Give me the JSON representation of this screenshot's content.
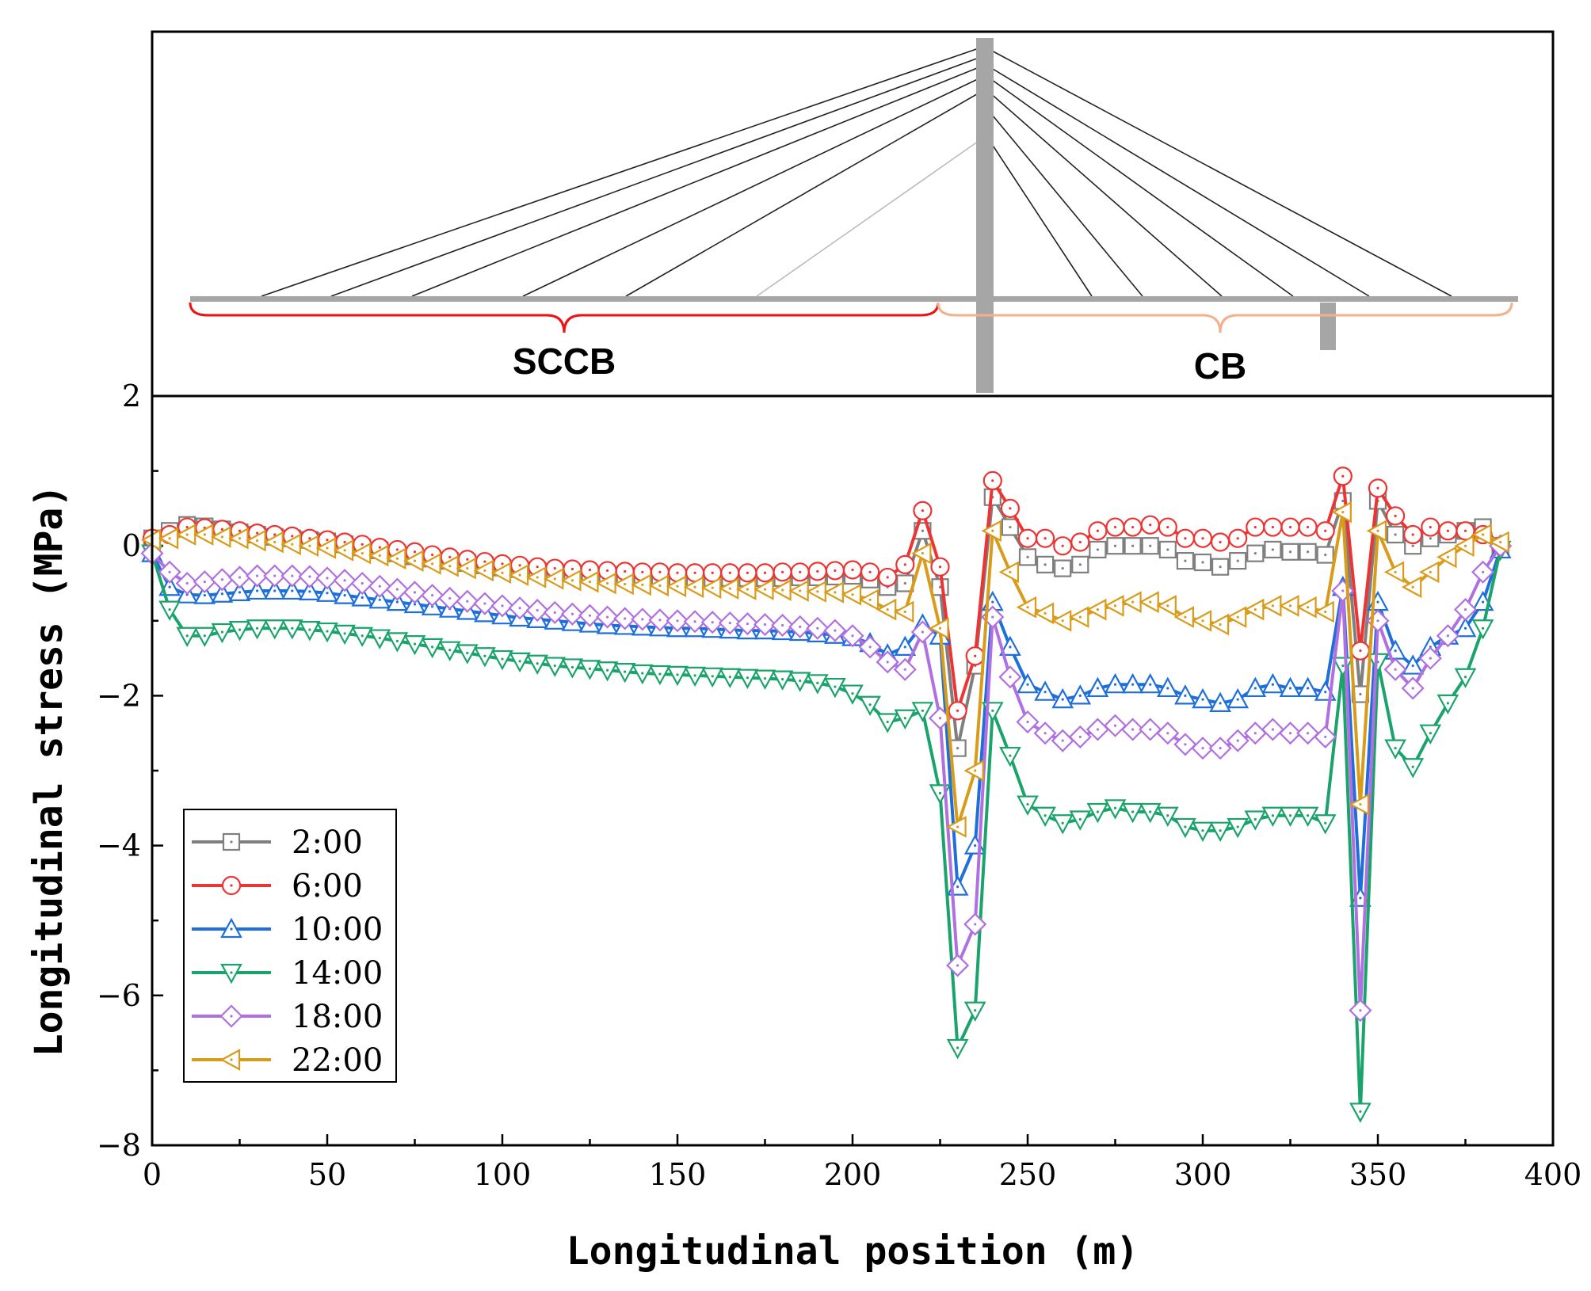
{
  "diagram": {
    "label_left": "SCCB",
    "label_right": "CB",
    "colors": {
      "deck": "#a6a6a6",
      "tower": "#a6a6a6",
      "cable": "#222222",
      "brace_left": "#ee1111",
      "brace_right": "#f4b08a"
    }
  },
  "chart_data": {
    "type": "line",
    "xlabel": "Longitudinal position (m)",
    "ylabel": "Longitudinal stress (MPa)",
    "xlim": [
      0,
      400
    ],
    "ylim": [
      -8,
      2
    ],
    "xticks": [
      0,
      50,
      100,
      150,
      200,
      250,
      300,
      350,
      400
    ],
    "yticks": [
      -8,
      -6,
      -4,
      -2,
      0,
      2
    ],
    "x": [
      0,
      5,
      10,
      15,
      20,
      25,
      30,
      35,
      40,
      45,
      50,
      55,
      60,
      65,
      70,
      75,
      80,
      85,
      90,
      95,
      100,
      105,
      110,
      115,
      120,
      125,
      130,
      135,
      140,
      145,
      150,
      155,
      160,
      165,
      170,
      175,
      180,
      185,
      190,
      195,
      200,
      205,
      210,
      215,
      220,
      225,
      230,
      235,
      240,
      245,
      250,
      255,
      260,
      265,
      270,
      275,
      280,
      285,
      290,
      295,
      300,
      305,
      310,
      315,
      320,
      325,
      330,
      335,
      340,
      345,
      350,
      355,
      360,
      365,
      370,
      375,
      380,
      385
    ],
    "series": [
      {
        "name": "2:00",
        "color": "#7f7f7f",
        "marker": "square",
        "values": [
          0.1,
          0.2,
          0.28,
          0.26,
          0.22,
          0.18,
          0.15,
          0.12,
          0.1,
          0.08,
          0.06,
          0.02,
          -0.02,
          -0.06,
          -0.1,
          -0.14,
          -0.17,
          -0.2,
          -0.23,
          -0.26,
          -0.29,
          -0.31,
          -0.33,
          -0.35,
          -0.37,
          -0.38,
          -0.39,
          -0.4,
          -0.41,
          -0.42,
          -0.42,
          -0.43,
          -0.43,
          -0.43,
          -0.43,
          -0.43,
          -0.43,
          -0.42,
          -0.42,
          -0.41,
          -0.4,
          -0.45,
          -0.55,
          -0.5,
          0.2,
          -0.55,
          -2.7,
          -1.6,
          0.65,
          0.25,
          -0.15,
          -0.25,
          -0.3,
          -0.25,
          -0.05,
          0.0,
          0.0,
          0.0,
          -0.05,
          -0.2,
          -0.22,
          -0.28,
          -0.2,
          -0.1,
          -0.05,
          -0.08,
          -0.08,
          -0.12,
          0.6,
          -1.98,
          0.6,
          0.15,
          0.0,
          0.1,
          0.15,
          0.2,
          0.25,
          0.0
        ]
      },
      {
        "name": "6:00",
        "color": "#ee3333",
        "marker": "circle",
        "values": [
          0.1,
          0.15,
          0.25,
          0.24,
          0.22,
          0.2,
          0.17,
          0.15,
          0.13,
          0.1,
          0.08,
          0.05,
          0.02,
          -0.02,
          -0.05,
          -0.08,
          -0.12,
          -0.15,
          -0.18,
          -0.21,
          -0.24,
          -0.26,
          -0.28,
          -0.3,
          -0.31,
          -0.32,
          -0.33,
          -0.34,
          -0.35,
          -0.35,
          -0.36,
          -0.36,
          -0.36,
          -0.36,
          -0.36,
          -0.36,
          -0.35,
          -0.35,
          -0.34,
          -0.33,
          -0.32,
          -0.35,
          -0.42,
          -0.25,
          0.47,
          -0.28,
          -2.2,
          -1.47,
          0.87,
          0.5,
          0.1,
          0.1,
          0.0,
          0.05,
          0.2,
          0.25,
          0.25,
          0.28,
          0.25,
          0.1,
          0.1,
          0.05,
          0.1,
          0.25,
          0.25,
          0.25,
          0.25,
          0.2,
          0.93,
          -1.4,
          0.77,
          0.4,
          0.15,
          0.25,
          0.2,
          0.2,
          0.15,
          0.0
        ]
      },
      {
        "name": "10:00",
        "color": "#1e6fd9",
        "marker": "triangle-up",
        "values": [
          -0.1,
          -0.55,
          -0.65,
          -0.66,
          -0.64,
          -0.62,
          -0.6,
          -0.6,
          -0.6,
          -0.61,
          -0.63,
          -0.66,
          -0.69,
          -0.72,
          -0.75,
          -0.78,
          -0.81,
          -0.84,
          -0.87,
          -0.9,
          -0.93,
          -0.96,
          -0.98,
          -1.0,
          -1.02,
          -1.04,
          -1.06,
          -1.07,
          -1.08,
          -1.09,
          -1.1,
          -1.1,
          -1.11,
          -1.12,
          -1.13,
          -1.13,
          -1.14,
          -1.15,
          -1.17,
          -1.19,
          -1.22,
          -1.3,
          -1.45,
          -1.35,
          -1.05,
          -1.2,
          -4.55,
          -4.0,
          -0.75,
          -1.35,
          -1.85,
          -1.95,
          -2.05,
          -2.0,
          -1.9,
          -1.85,
          -1.85,
          -1.85,
          -1.9,
          -2.0,
          -2.05,
          -2.1,
          -2.05,
          -1.9,
          -1.85,
          -1.9,
          -1.9,
          -1.95,
          -0.55,
          -4.7,
          -0.75,
          -1.4,
          -1.6,
          -1.35,
          -1.2,
          -1.1,
          -0.75,
          -0.05
        ]
      },
      {
        "name": "14:00",
        "color": "#1aa36b",
        "marker": "triangle-down",
        "values": [
          -0.1,
          -0.85,
          -1.2,
          -1.2,
          -1.15,
          -1.12,
          -1.1,
          -1.1,
          -1.1,
          -1.12,
          -1.14,
          -1.17,
          -1.2,
          -1.23,
          -1.27,
          -1.31,
          -1.35,
          -1.39,
          -1.43,
          -1.47,
          -1.51,
          -1.54,
          -1.57,
          -1.6,
          -1.62,
          -1.64,
          -1.66,
          -1.68,
          -1.7,
          -1.71,
          -1.72,
          -1.73,
          -1.74,
          -1.75,
          -1.76,
          -1.77,
          -1.78,
          -1.8,
          -1.83,
          -1.88,
          -1.97,
          -2.12,
          -2.35,
          -2.3,
          -2.2,
          -3.3,
          -6.7,
          -6.2,
          -2.2,
          -2.8,
          -3.45,
          -3.6,
          -3.7,
          -3.65,
          -3.55,
          -3.5,
          -3.55,
          -3.55,
          -3.6,
          -3.75,
          -3.8,
          -3.8,
          -3.75,
          -3.65,
          -3.6,
          -3.6,
          -3.6,
          -3.7,
          -1.6,
          -7.55,
          -1.55,
          -2.7,
          -2.95,
          -2.5,
          -2.1,
          -1.75,
          -1.1,
          -0.05
        ]
      },
      {
        "name": "18:00",
        "color": "#b070e0",
        "marker": "diamond",
        "values": [
          -0.1,
          -0.35,
          -0.5,
          -0.48,
          -0.45,
          -0.42,
          -0.4,
          -0.4,
          -0.4,
          -0.41,
          -0.43,
          -0.46,
          -0.5,
          -0.54,
          -0.58,
          -0.62,
          -0.66,
          -0.7,
          -0.74,
          -0.77,
          -0.8,
          -0.83,
          -0.86,
          -0.89,
          -0.91,
          -0.93,
          -0.95,
          -0.97,
          -0.98,
          -0.99,
          -1.0,
          -1.01,
          -1.02,
          -1.03,
          -1.04,
          -1.05,
          -1.06,
          -1.08,
          -1.1,
          -1.13,
          -1.2,
          -1.35,
          -1.55,
          -1.65,
          -1.15,
          -2.3,
          -5.6,
          -5.05,
          -0.95,
          -1.75,
          -2.35,
          -2.5,
          -2.6,
          -2.55,
          -2.45,
          -2.4,
          -2.45,
          -2.45,
          -2.5,
          -2.65,
          -2.7,
          -2.7,
          -2.6,
          -2.5,
          -2.45,
          -2.5,
          -2.5,
          -2.55,
          -0.6,
          -6.2,
          -1.0,
          -1.65,
          -1.9,
          -1.5,
          -1.2,
          -0.85,
          -0.35,
          0.0
        ]
      },
      {
        "name": "22:00",
        "color": "#d89c1a",
        "marker": "triangle-left",
        "values": [
          0.08,
          0.1,
          0.15,
          0.15,
          0.12,
          0.1,
          0.07,
          0.05,
          0.02,
          0.0,
          -0.03,
          -0.06,
          -0.1,
          -0.13,
          -0.17,
          -0.2,
          -0.24,
          -0.27,
          -0.3,
          -0.33,
          -0.36,
          -0.39,
          -0.42,
          -0.44,
          -0.46,
          -0.48,
          -0.5,
          -0.51,
          -0.52,
          -0.53,
          -0.54,
          -0.55,
          -0.56,
          -0.57,
          -0.58,
          -0.58,
          -0.59,
          -0.6,
          -0.61,
          -0.62,
          -0.65,
          -0.72,
          -0.85,
          -0.88,
          -0.1,
          -1.1,
          -3.75,
          -3.0,
          0.2,
          -0.35,
          -0.82,
          -0.9,
          -1.0,
          -0.95,
          -0.85,
          -0.8,
          -0.75,
          -0.75,
          -0.8,
          -0.95,
          -1.0,
          -1.05,
          -0.95,
          -0.85,
          -0.8,
          -0.8,
          -0.82,
          -0.88,
          0.45,
          -3.45,
          0.2,
          -0.35,
          -0.55,
          -0.35,
          -0.15,
          0.0,
          0.15,
          0.05
        ]
      }
    ],
    "legend": {
      "position": "bottom-left",
      "entries": [
        "2:00",
        "6:00",
        "10:00",
        "14:00",
        "18:00",
        "22:00"
      ]
    }
  }
}
